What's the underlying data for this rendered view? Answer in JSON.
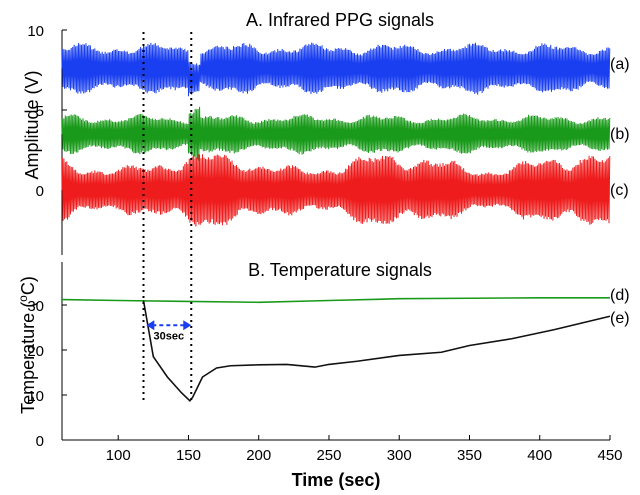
{
  "chart_data": [
    {
      "type": "line",
      "title": "A. Infrared PPG signals",
      "ylabel": "Amplitude (V)",
      "xlim": [
        60,
        450
      ],
      "ylim": [
        -2.5,
        10
      ],
      "yticks": [
        "0",
        "5",
        "10"
      ],
      "series": [
        {
          "name": "(a)",
          "color": "#1a3ff0",
          "center": 7.6,
          "amplitude": 1.3,
          "description_points": [
            [
              60,
              7.6
            ],
            [
              120,
              7.5
            ],
            [
              150,
              7.6
            ],
            [
              450,
              7.4
            ]
          ]
        },
        {
          "name": "(b)",
          "color": "#1a9a1a",
          "center": 3.5,
          "amplitude": 1.0,
          "description_points": [
            [
              60,
              3.4
            ],
            [
              120,
              3.3
            ],
            [
              150,
              3.6
            ],
            [
              450,
              3.4
            ]
          ]
        },
        {
          "name": "(c)",
          "color": "#ee1c1c",
          "center": 0.0,
          "amplitude": 1.6,
          "description_points": [
            [
              60,
              0.0
            ],
            [
              120,
              0.3
            ],
            [
              150,
              -0.1
            ],
            [
              450,
              0.0
            ]
          ]
        }
      ],
      "vlines": [
        118,
        152
      ],
      "grid": false
    },
    {
      "type": "line",
      "title": "B. Temperature signals",
      "ylabel": "Temperature (°C)",
      "ylabel_parts": {
        "pre": "Temperature (",
        "sup": "o",
        "post": "C)"
      },
      "xlabel": "Time (sec)",
      "xlim": [
        60,
        450
      ],
      "ylim": [
        0,
        35
      ],
      "xticks": [
        "100",
        "150",
        "200",
        "250",
        "300",
        "350",
        "400",
        "450"
      ],
      "yticks": [
        "0",
        "10",
        "20",
        "30"
      ],
      "series": [
        {
          "name": "(d)",
          "color": "#1a9a1a",
          "x": [
            60,
            100,
            150,
            200,
            250,
            300,
            350,
            400,
            450
          ],
          "y": [
            31.2,
            31.0,
            30.8,
            30.6,
            31.0,
            31.4,
            31.5,
            31.6,
            31.6
          ]
        },
        {
          "name": "(e)",
          "color": "#111111",
          "x": [
            118,
            125,
            135,
            145,
            151,
            153,
            160,
            170,
            180,
            200,
            220,
            240,
            250,
            270,
            300,
            330,
            350,
            380,
            410,
            430,
            450
          ],
          "y": [
            31.0,
            18.5,
            14.0,
            10.5,
            8.7,
            9.5,
            14.0,
            16.0,
            16.5,
            16.7,
            16.8,
            16.2,
            16.8,
            17.5,
            18.8,
            19.5,
            21.0,
            22.5,
            24.5,
            26.0,
            27.5
          ]
        }
      ],
      "annotations": [
        {
          "text": "30sec",
          "x_from": 120,
          "x_to": 152,
          "y": 25.5
        }
      ],
      "vlines": [
        118,
        152
      ],
      "grid": false
    }
  ]
}
